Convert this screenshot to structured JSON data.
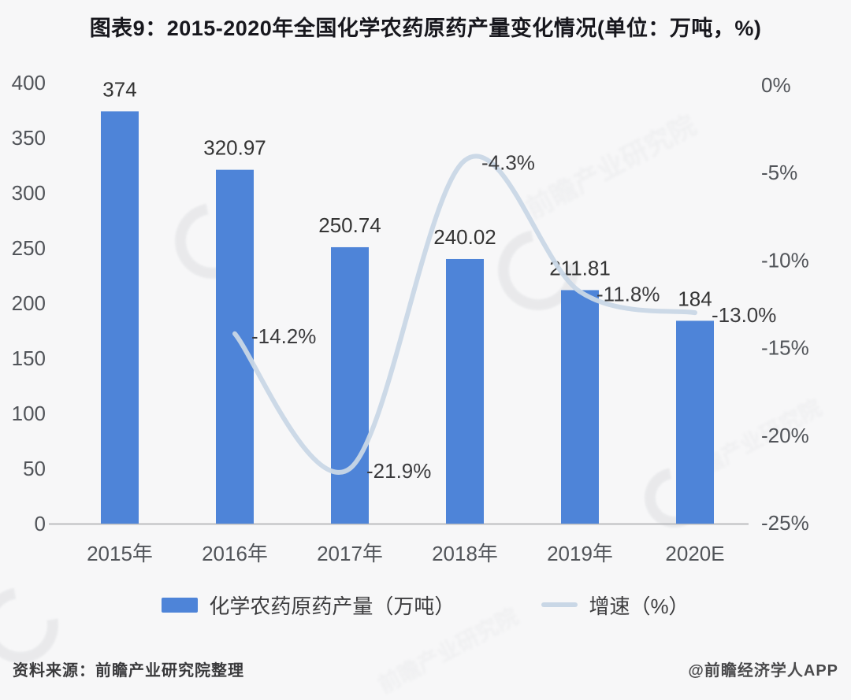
{
  "title": "图表9：2015-2020年全国化学农药原药产量变化情况(单位：万吨，%)",
  "chart_data": {
    "type": "combo",
    "title": "图表9：2015-2020年全国化学农药原药产量变化情况(单位：万吨，%)",
    "categories": [
      "2015年",
      "2016年",
      "2017年",
      "2018年",
      "2019年",
      "2020E"
    ],
    "series": [
      {
        "name": "化学农药原药产量（万吨）",
        "type": "bar",
        "axis": "left",
        "values": [
          374,
          320.97,
          250.74,
          240.02,
          211.81,
          184
        ],
        "labels": [
          "374",
          "320.97",
          "250.74",
          "240.02",
          "211.81",
          "184"
        ]
      },
      {
        "name": "增速（%）",
        "type": "line",
        "axis": "right",
        "x_categories": [
          "2016年",
          "2017年",
          "2018年",
          "2019年",
          "2020E"
        ],
        "values": [
          -14.2,
          -21.9,
          -4.3,
          -11.8,
          -13.0
        ],
        "labels": [
          "-14.2%",
          "-21.9%",
          "-4.3%",
          "-11.8%",
          "-13.0%"
        ]
      }
    ],
    "left_axis": {
      "min": 0,
      "max": 400,
      "ticks": [
        400,
        350,
        300,
        250,
        200,
        150,
        100,
        50,
        0
      ]
    },
    "right_axis": {
      "min": -25,
      "max": 0,
      "ticks": [
        "0%",
        "-5%",
        "-10%",
        "-15%",
        "-20%",
        "-25%"
      ]
    },
    "grid": false,
    "legend_position": "bottom"
  },
  "legend": {
    "bar_label": "化学农药原药产量（万吨）",
    "line_label": "增速（%）"
  },
  "footer": {
    "source": "资料来源：前瞻产业研究院整理",
    "credit": "@前瞻经济学人APP"
  },
  "watermark": {
    "text": "前瞻产业研究院"
  },
  "colors": {
    "bar": "#4e84d8",
    "line": "#c9d7e6",
    "background": "#f7f7f8",
    "title_text": "#17171d",
    "axis_text": "#515459",
    "value_label_text": "#343434",
    "axis_line": "#bcbdc0"
  }
}
